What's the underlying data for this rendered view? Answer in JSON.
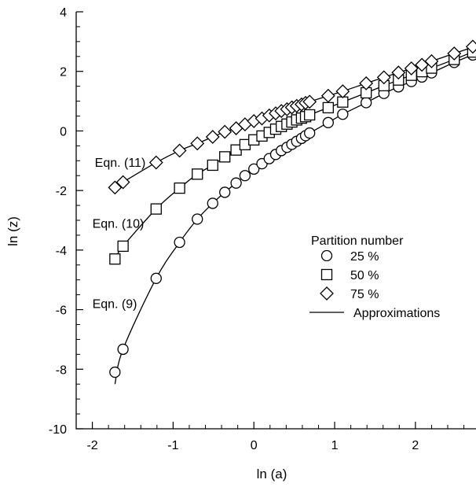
{
  "chart_data": {
    "type": "scatter",
    "title": "",
    "xlabel": "ln (a)",
    "ylabel": "ln (z)",
    "xlim": [
      -2.2,
      2.75
    ],
    "ylim": [
      -10,
      4
    ],
    "grid": false,
    "x_ticks": [
      -2,
      -1,
      0,
      1,
      2
    ],
    "x_tick_labels": [
      "-2",
      "-1",
      "0",
      "1",
      "2"
    ],
    "y_ticks": [
      -10,
      -8,
      -6,
      -4,
      -2,
      0,
      2,
      4
    ],
    "y_tick_labels": [
      "-10",
      "-8",
      "-6",
      "-4",
      "-2",
      "0",
      "2",
      "4"
    ],
    "legend": {
      "title": "Partition number",
      "placement": "right-middle",
      "entries": [
        {
          "marker": "circle",
          "label": "25 %"
        },
        {
          "marker": "square",
          "label": "50 %"
        },
        {
          "marker": "diamond",
          "label": "75 %"
        },
        {
          "marker": "line",
          "label": "Approximations"
        }
      ]
    },
    "annotations": [
      {
        "text": "Eqn. (11)",
        "x": -1.97,
        "y": -1.2
      },
      {
        "text": "Eqn. (10)",
        "x": -2.0,
        "y": -3.25
      },
      {
        "text": "Eqn. (9)",
        "x": -2.0,
        "y": -5.95
      }
    ],
    "series": [
      {
        "name": "25 %",
        "marker": "circle",
        "points": [
          [
            -1.72,
            -8.1
          ],
          [
            -1.62,
            -7.33
          ],
          [
            -1.21,
            -4.95
          ],
          [
            -0.92,
            -3.74
          ],
          [
            -0.7,
            -2.96
          ],
          [
            -0.51,
            -2.43
          ],
          [
            -0.36,
            -2.06
          ],
          [
            -0.22,
            -1.75
          ],
          [
            -0.11,
            -1.5
          ],
          [
            0.0,
            -1.28
          ],
          [
            0.1,
            -1.1
          ],
          [
            0.19,
            -0.93
          ],
          [
            0.27,
            -0.79
          ],
          [
            0.34,
            -0.66
          ],
          [
            0.41,
            -0.55
          ],
          [
            0.47,
            -0.45
          ],
          [
            0.53,
            -0.35
          ],
          [
            0.59,
            -0.25
          ],
          [
            0.64,
            -0.16
          ],
          [
            0.69,
            -0.07
          ],
          [
            0.92,
            0.28
          ],
          [
            1.1,
            0.56
          ],
          [
            1.39,
            0.95
          ],
          [
            1.61,
            1.26
          ],
          [
            1.79,
            1.48
          ],
          [
            1.95,
            1.66
          ],
          [
            2.08,
            1.81
          ],
          [
            2.2,
            1.95
          ],
          [
            2.48,
            2.3
          ],
          [
            2.71,
            2.55
          ]
        ]
      },
      {
        "name": "50 %",
        "marker": "square",
        "points": [
          [
            -1.72,
            -4.3
          ],
          [
            -1.62,
            -3.87
          ],
          [
            -1.21,
            -2.62
          ],
          [
            -0.92,
            -1.92
          ],
          [
            -0.7,
            -1.45
          ],
          [
            -0.51,
            -1.15
          ],
          [
            -0.36,
            -0.87
          ],
          [
            -0.22,
            -0.64
          ],
          [
            -0.11,
            -0.46
          ],
          [
            0.0,
            -0.3
          ],
          [
            0.1,
            -0.17
          ],
          [
            0.19,
            -0.05
          ],
          [
            0.27,
            0.06
          ],
          [
            0.34,
            0.15
          ],
          [
            0.41,
            0.23
          ],
          [
            0.47,
            0.3
          ],
          [
            0.53,
            0.37
          ],
          [
            0.59,
            0.43
          ],
          [
            0.64,
            0.48
          ],
          [
            0.69,
            0.54
          ],
          [
            0.92,
            0.78
          ],
          [
            1.1,
            0.97
          ],
          [
            1.39,
            1.28
          ],
          [
            1.61,
            1.52
          ],
          [
            1.79,
            1.71
          ],
          [
            1.95,
            1.87
          ],
          [
            2.08,
            1.99
          ],
          [
            2.2,
            2.11
          ],
          [
            2.48,
            2.4
          ],
          [
            2.71,
            2.65
          ]
        ]
      },
      {
        "name": "75 %",
        "marker": "diamond",
        "points": [
          [
            -1.72,
            -1.9
          ],
          [
            -1.62,
            -1.72
          ],
          [
            -1.21,
            -1.06
          ],
          [
            -0.92,
            -0.66
          ],
          [
            -0.7,
            -0.42
          ],
          [
            -0.51,
            -0.2
          ],
          [
            -0.36,
            -0.03
          ],
          [
            -0.22,
            0.09
          ],
          [
            -0.11,
            0.22
          ],
          [
            0.0,
            0.33
          ],
          [
            0.1,
            0.42
          ],
          [
            0.19,
            0.52
          ],
          [
            0.27,
            0.59
          ],
          [
            0.34,
            0.67
          ],
          [
            0.41,
            0.73
          ],
          [
            0.47,
            0.79
          ],
          [
            0.53,
            0.84
          ],
          [
            0.59,
            0.89
          ],
          [
            0.64,
            0.94
          ],
          [
            0.69,
            0.98
          ],
          [
            0.92,
            1.18
          ],
          [
            1.1,
            1.33
          ],
          [
            1.39,
            1.6
          ],
          [
            1.61,
            1.8
          ],
          [
            1.79,
            1.96
          ],
          [
            1.95,
            2.1
          ],
          [
            2.08,
            2.22
          ],
          [
            2.2,
            2.34
          ],
          [
            2.48,
            2.6
          ],
          [
            2.71,
            2.83
          ]
        ]
      }
    ],
    "approximations": [
      {
        "label": "Eqn. (9)",
        "points": [
          [
            -1.72,
            -8.5
          ],
          [
            -1.62,
            -7.33
          ],
          [
            -1.21,
            -4.95
          ],
          [
            -0.92,
            -3.74
          ],
          [
            -0.7,
            -2.96
          ],
          [
            -0.51,
            -2.43
          ],
          [
            -0.36,
            -2.06
          ],
          [
            -0.22,
            -1.75
          ],
          [
            -0.11,
            -1.5
          ],
          [
            0.0,
            -1.28
          ],
          [
            0.1,
            -1.1
          ],
          [
            0.19,
            -0.93
          ],
          [
            0.27,
            -0.79
          ],
          [
            0.34,
            -0.66
          ],
          [
            0.41,
            -0.55
          ],
          [
            0.47,
            -0.45
          ],
          [
            0.53,
            -0.35
          ],
          [
            0.59,
            -0.25
          ],
          [
            0.64,
            -0.16
          ],
          [
            0.69,
            -0.07
          ],
          [
            0.92,
            0.28
          ],
          [
            1.1,
            0.56
          ],
          [
            1.39,
            0.95
          ],
          [
            1.61,
            1.26
          ],
          [
            1.79,
            1.48
          ],
          [
            1.95,
            1.66
          ],
          [
            2.08,
            1.81
          ],
          [
            2.2,
            1.95
          ],
          [
            2.48,
            2.3
          ],
          [
            2.75,
            2.6
          ]
        ]
      },
      {
        "label": "Eqn. (10)",
        "points": [
          [
            -1.72,
            -4.3
          ],
          [
            -1.62,
            -3.87
          ],
          [
            -1.21,
            -2.62
          ],
          [
            -0.92,
            -1.92
          ],
          [
            -0.7,
            -1.45
          ],
          [
            -0.51,
            -1.15
          ],
          [
            -0.36,
            -0.87
          ],
          [
            -0.22,
            -0.64
          ],
          [
            -0.11,
            -0.46
          ],
          [
            0.0,
            -0.3
          ],
          [
            0.1,
            -0.17
          ],
          [
            0.19,
            -0.05
          ],
          [
            0.27,
            0.06
          ],
          [
            0.34,
            0.15
          ],
          [
            0.41,
            0.23
          ],
          [
            0.47,
            0.3
          ],
          [
            0.53,
            0.37
          ],
          [
            0.59,
            0.43
          ],
          [
            0.64,
            0.48
          ],
          [
            0.69,
            0.54
          ],
          [
            0.92,
            0.78
          ],
          [
            1.1,
            0.97
          ],
          [
            1.39,
            1.28
          ],
          [
            1.61,
            1.52
          ],
          [
            1.79,
            1.71
          ],
          [
            1.95,
            1.87
          ],
          [
            2.08,
            1.99
          ],
          [
            2.2,
            2.11
          ],
          [
            2.48,
            2.4
          ],
          [
            2.75,
            2.7
          ]
        ]
      },
      {
        "label": "Eqn. (11)",
        "points": [
          [
            -1.72,
            -1.9
          ],
          [
            -1.62,
            -1.72
          ],
          [
            -1.21,
            -1.06
          ],
          [
            -0.92,
            -0.66
          ],
          [
            -0.7,
            -0.42
          ],
          [
            -0.51,
            -0.2
          ],
          [
            -0.36,
            -0.03
          ],
          [
            -0.22,
            0.09
          ],
          [
            -0.11,
            0.22
          ],
          [
            0.0,
            0.33
          ],
          [
            0.1,
            0.42
          ],
          [
            0.19,
            0.52
          ],
          [
            0.27,
            0.59
          ],
          [
            0.34,
            0.67
          ],
          [
            0.41,
            0.73
          ],
          [
            0.47,
            0.79
          ],
          [
            0.53,
            0.84
          ],
          [
            0.59,
            0.89
          ],
          [
            0.64,
            0.94
          ],
          [
            0.69,
            0.98
          ],
          [
            0.92,
            1.18
          ],
          [
            1.1,
            1.33
          ],
          [
            1.39,
            1.6
          ],
          [
            1.61,
            1.8
          ],
          [
            1.79,
            1.96
          ],
          [
            1.95,
            2.1
          ],
          [
            2.08,
            2.22
          ],
          [
            2.2,
            2.34
          ],
          [
            2.48,
            2.6
          ],
          [
            2.75,
            2.85
          ]
        ]
      }
    ]
  }
}
